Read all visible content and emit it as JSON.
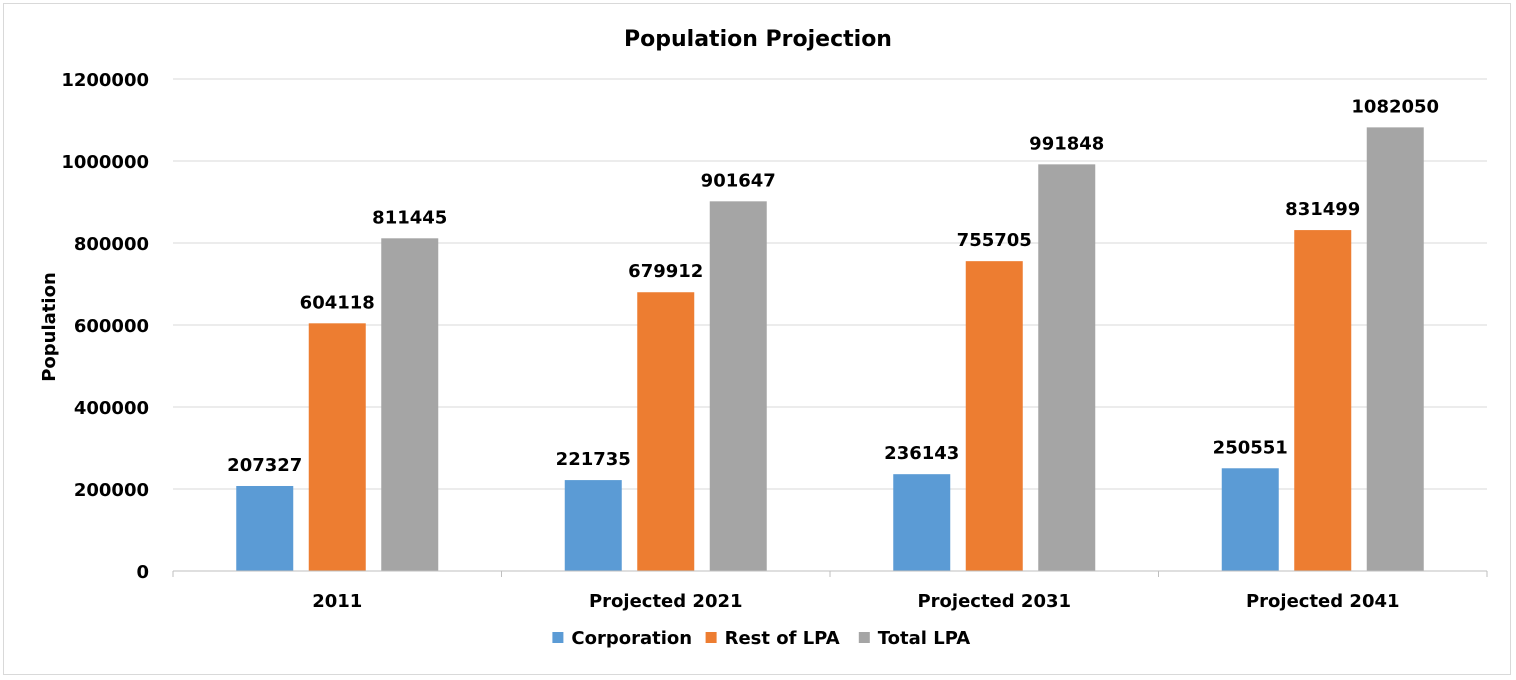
{
  "chart_data": {
    "type": "bar",
    "title": "Population Projection",
    "xlabel": "",
    "ylabel": "Population",
    "ylim": [
      0,
      1200000
    ],
    "yticks": [
      0,
      200000,
      400000,
      600000,
      800000,
      1000000,
      1200000
    ],
    "categories": [
      "2011",
      "Projected 2021",
      "Projected 2031",
      "Projected 2041"
    ],
    "series": [
      {
        "name": "Corporation",
        "color": "#5b9bd5",
        "values": [
          207327,
          221735,
          236143,
          250551
        ]
      },
      {
        "name": "Rest of LPA",
        "color": "#ed7d31",
        "values": [
          604118,
          679912,
          755705,
          831499
        ]
      },
      {
        "name": "Total LPA",
        "color": "#a5a5a5",
        "values": [
          811445,
          901647,
          991848,
          1082050
        ]
      }
    ],
    "grid": true,
    "legend_position": "bottom"
  }
}
